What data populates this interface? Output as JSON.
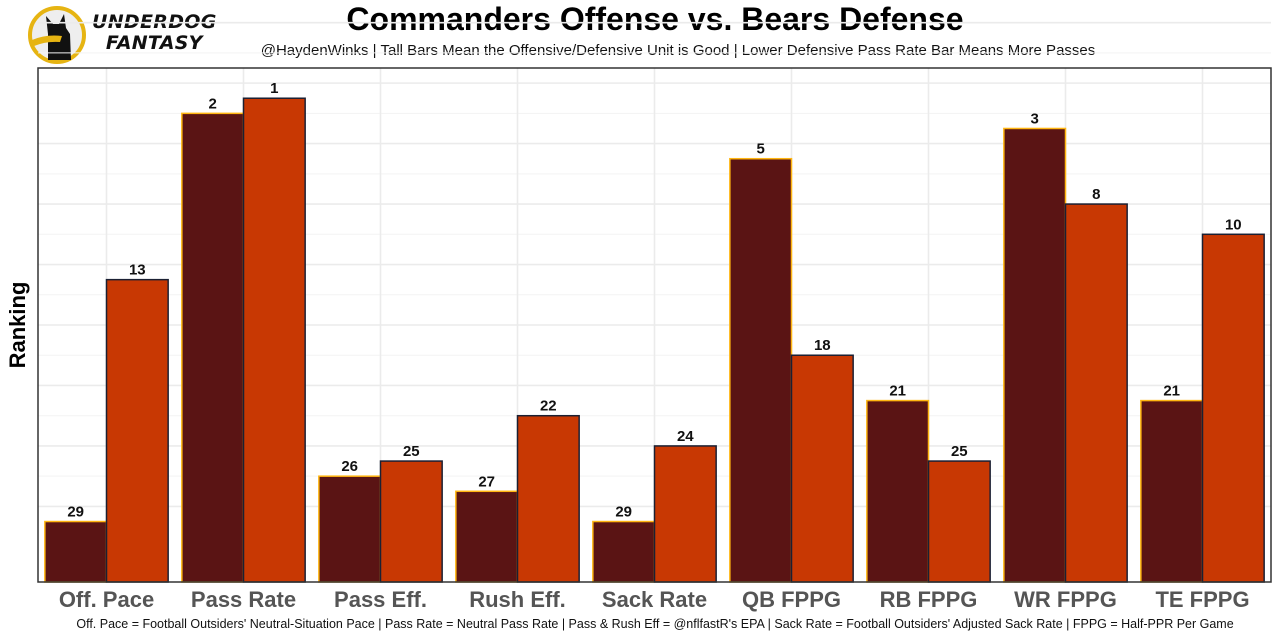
{
  "header": {
    "logo_line1": "UNDERDOG",
    "logo_line2": "FANTASY",
    "logo_icon": "dog-silhouette-icon"
  },
  "chart_data": {
    "type": "bar",
    "title": "Commanders Offense vs. Bears Defense",
    "subtitle": "@HaydenWinks | Tall Bars Mean the Offensive/Defensive Unit is Good | Lower Defensive Pass Rate Bar Means More Passes",
    "xlabel": "",
    "ylabel": "Ranking",
    "caption": "Off. Pace = Football Outsiders' Neutral-Situation Pace | Pass Rate = Neutral Pass Rate | Pass & Rush Eff = @nflfastR's EPA | Sack Rate = Football Outsiders' Adjusted Sack Rate | FPPG = Half-PPR Per Game",
    "categories": [
      "Off. Pace",
      "Pass Rate",
      "Pass Eff.",
      "Rush Eff.",
      "Sack Rate",
      "QB FPPG",
      "RB FPPG",
      "WR FPPG",
      "TE FPPG"
    ],
    "series": [
      {
        "name": "Commanders Offense",
        "color": "#5a1414",
        "outline": "#ffb612",
        "values": [
          29,
          2,
          26,
          27,
          29,
          5,
          21,
          3,
          21
        ]
      },
      {
        "name": "Bears Defense",
        "color": "#c83803",
        "outline": "#1b2033",
        "values": [
          13,
          1,
          25,
          22,
          24,
          18,
          25,
          8,
          10
        ]
      }
    ],
    "bar_height_rule": "height = 33 - rank (rank 1 tallest)",
    "ylim": [
      0,
      34
    ],
    "y_tick_labels_shown": false,
    "grid": true,
    "legend": "none"
  }
}
